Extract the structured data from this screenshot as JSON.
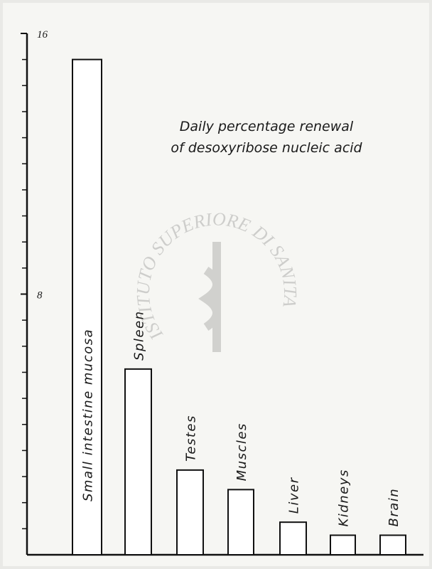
{
  "chart_data": {
    "type": "bar",
    "title": [
      "Daily percentage renewal",
      "of desoxyribose nucleic acid"
    ],
    "watermark": "ISTITUTO SUPERIORE DI SANITA",
    "categories": [
      "Small intestine mucosa",
      "Spleen",
      "Testes",
      "Muscles",
      "Liver",
      "Kidneys",
      "Brain"
    ],
    "values": [
      15.2,
      5.7,
      2.6,
      2.0,
      1.0,
      0.6,
      0.6
    ],
    "color": "#ffffff",
    "ylim": [
      0,
      16
    ],
    "yticks": [
      8,
      16
    ],
    "yminorticks": [
      0.8,
      1.6,
      2.4,
      3.2,
      4.0,
      4.8,
      5.6,
      6.4,
      7.2,
      8.8,
      9.6,
      10.4,
      11.2,
      12.0,
      12.8,
      13.6,
      14.4,
      15.2
    ]
  }
}
